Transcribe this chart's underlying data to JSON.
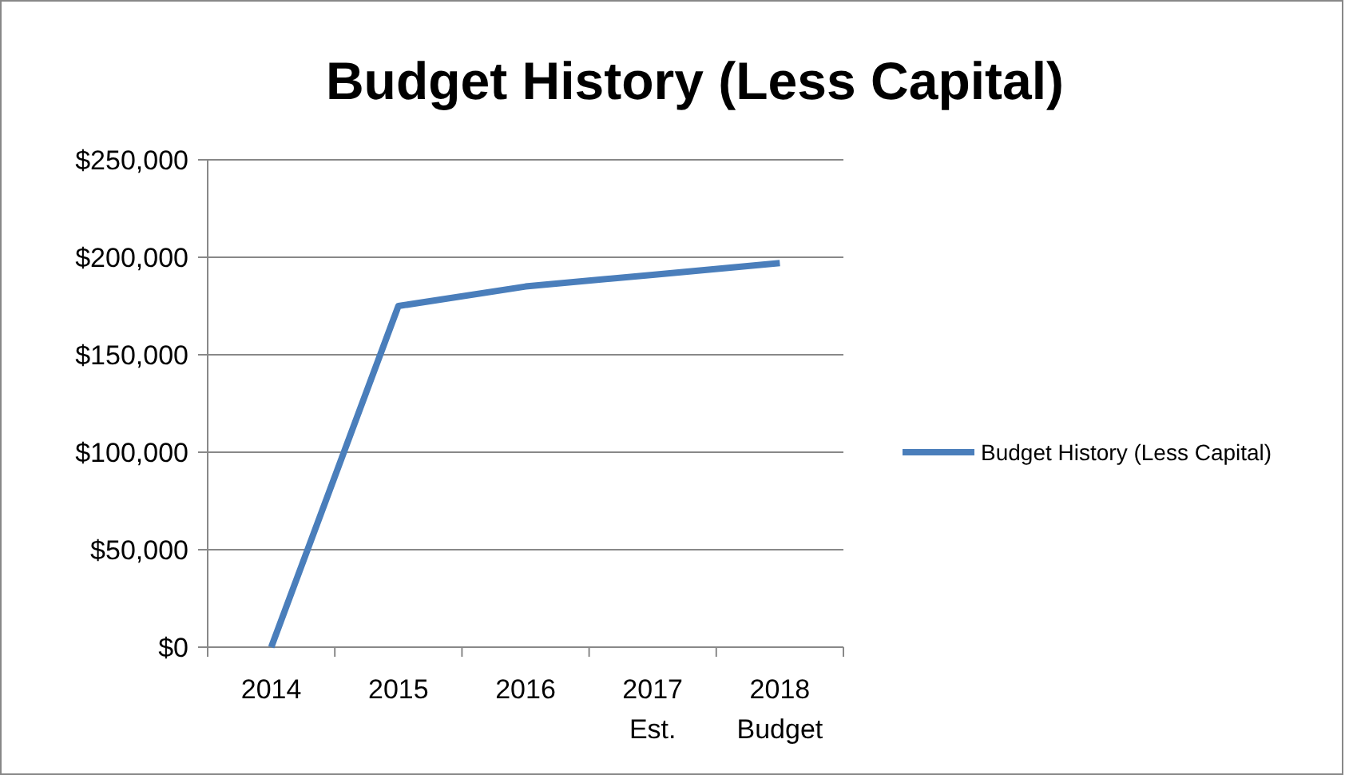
{
  "chart_data": {
    "type": "line",
    "title": "Budget History (Less Capital)",
    "categories": [
      "2014",
      "2015",
      "2016",
      "2017\nEst.",
      "2018\nBudget"
    ],
    "series": [
      {
        "name": "Budget History (Less Capital)",
        "color": "#4a7ebb",
        "values": [
          0,
          175000,
          185000,
          191000,
          197000
        ]
      }
    ],
    "ylim": [
      0,
      250000
    ],
    "yticks": [
      {
        "value": 0,
        "label": "$0"
      },
      {
        "value": 50000,
        "label": "$50,000"
      },
      {
        "value": 100000,
        "label": "$100,000"
      },
      {
        "value": 150000,
        "label": "$150,000"
      },
      {
        "value": 200000,
        "label": "$200,000"
      },
      {
        "value": 250000,
        "label": "$250,000"
      }
    ],
    "grid": "y",
    "legend": "right",
    "marker": "none",
    "line_style": "solid"
  }
}
